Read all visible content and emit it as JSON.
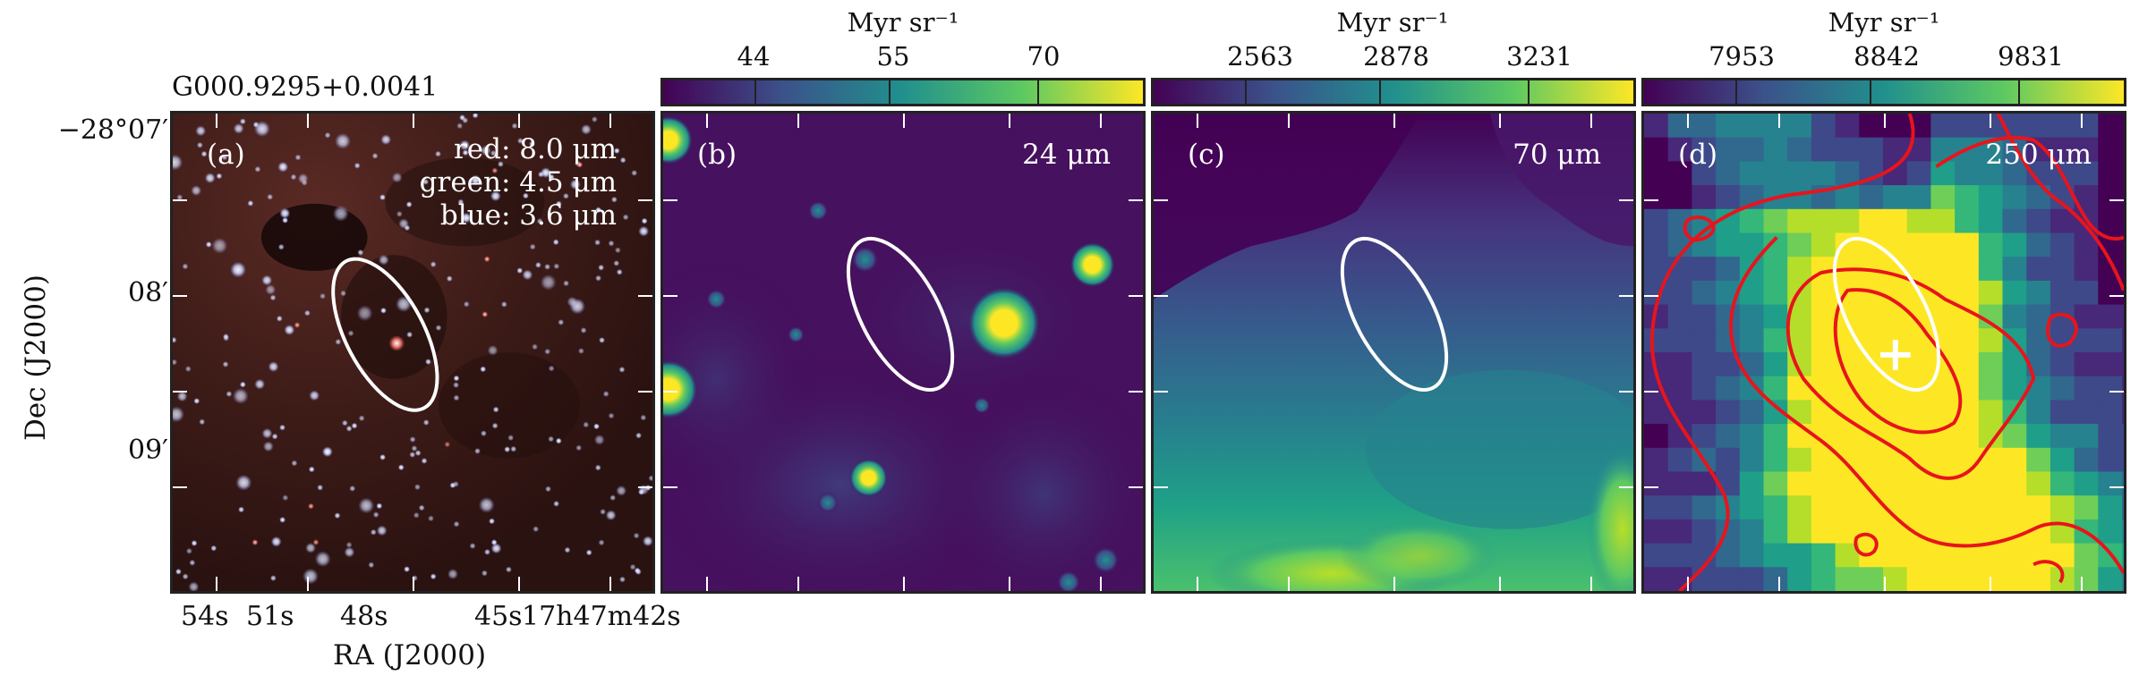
{
  "figure": {
    "source_label": "G000.9295+0.0041",
    "y_axis_title": "Dec (J2000)",
    "x_axis_title": "RA (J2000)",
    "dec_ticks": [
      "−28°07′",
      "08′",
      "09′"
    ],
    "ra_ticks": [
      "54s",
      "51s",
      "48s",
      "45s",
      "17h47m42s"
    ]
  },
  "panels": [
    {
      "letter": "(a)",
      "band_lines": [
        "red: 8.0 μm",
        "green: 4.5 μm",
        "blue: 3.6 μm"
      ],
      "colors": {
        "bg": "#3a1a16"
      }
    },
    {
      "letter": "(b)",
      "band": "24 μm",
      "colorbar": {
        "unit": "Myr sr⁻¹",
        "ticks": [
          "44",
          "55",
          "70"
        ]
      }
    },
    {
      "letter": "(c)",
      "band": "70 μm",
      "colorbar": {
        "unit": "Myr sr⁻¹",
        "ticks": [
          "2563",
          "2878",
          "3231"
        ]
      }
    },
    {
      "letter": "(d)",
      "band": "250 μm",
      "colorbar": {
        "unit": "Myr sr⁻¹",
        "ticks": [
          "7953",
          "8842",
          "9831"
        ]
      },
      "colors": {
        "contour": "#e8141c"
      }
    }
  ],
  "colormap": [
    "#440154",
    "#3b528b",
    "#21908d",
    "#5dc962",
    "#fde725"
  ]
}
